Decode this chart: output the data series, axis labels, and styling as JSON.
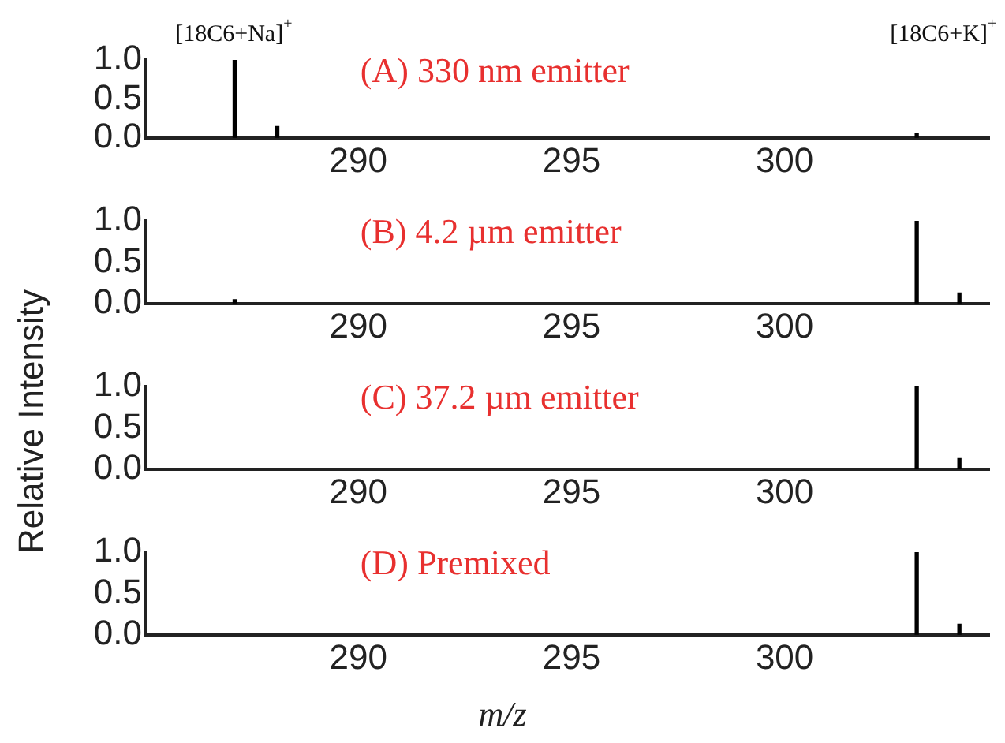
{
  "chart_data": [
    {
      "type": "bar",
      "title": "(A) 330 nm emitter",
      "ylabel": "Relative Intensity",
      "x": [
        287.1,
        288.1,
        303.1
      ],
      "series": [
        {
          "color": "#000000",
          "values": [
            1.0,
            0.15,
            0.06
          ]
        }
      ],
      "xlim": [
        285,
        304.8
      ],
      "xticks": [
        290,
        295,
        300
      ],
      "ylim": [
        0,
        1
      ],
      "yticks": [
        {
          "value": 0,
          "label": "0.0"
        },
        {
          "value": 0.5,
          "label": "0.5"
        },
        {
          "value": 1,
          "label": "1.0"
        }
      ],
      "grid": false,
      "legend": false,
      "annotations": [
        "[18C6+Na]$^{+}$",
        "[18C6+K]$^{+}$"
      ]
    },
    {
      "type": "bar",
      "title": "(B) 4.2 µm emitter",
      "x": [
        287.1,
        303.1,
        304.1
      ],
      "series": [
        {
          "color": "#000000",
          "values": [
            0.05,
            1.0,
            0.13
          ]
        }
      ],
      "xlim": [
        285,
        304.8
      ],
      "xticks": [
        290,
        295,
        300
      ],
      "ylim": [
        0,
        1
      ],
      "yticks": [
        {
          "value": 0,
          "label": "0.0"
        },
        {
          "value": 0.5,
          "label": "0.5"
        },
        {
          "value": 1,
          "label": "1.0"
        }
      ],
      "grid": false,
      "legend": false
    },
    {
      "type": "bar",
      "title": "(C) 37.2 µm emitter",
      "x": [
        303.1,
        304.1
      ],
      "series": [
        {
          "color": "#000000",
          "values": [
            1.0,
            0.13
          ]
        }
      ],
      "xlim": [
        285,
        304.8
      ],
      "xticks": [
        290,
        295,
        300
      ],
      "ylim": [
        0,
        1
      ],
      "yticks": [
        {
          "value": 0,
          "label": "0.0"
        },
        {
          "value": 0.5,
          "label": "0.5"
        },
        {
          "value": 1,
          "label": "1.0"
        }
      ],
      "grid": false,
      "legend": false
    },
    {
      "type": "bar",
      "title": "(D) Premixed",
      "xlabel": "m/z",
      "x": [
        303.1,
        304.1
      ],
      "series": [
        {
          "color": "#000000",
          "values": [
            1.0,
            0.13
          ]
        }
      ],
      "xlim": [
        285,
        304.8
      ],
      "xticks": [
        290,
        295,
        300
      ],
      "ylim": [
        0,
        1
      ],
      "yticks": [
        {
          "value": 0,
          "label": "0.0"
        },
        {
          "value": 0.5,
          "label": "0.5"
        },
        {
          "value": 1,
          "label": "1.0"
        }
      ],
      "grid": false,
      "legend": false
    }
  ]
}
